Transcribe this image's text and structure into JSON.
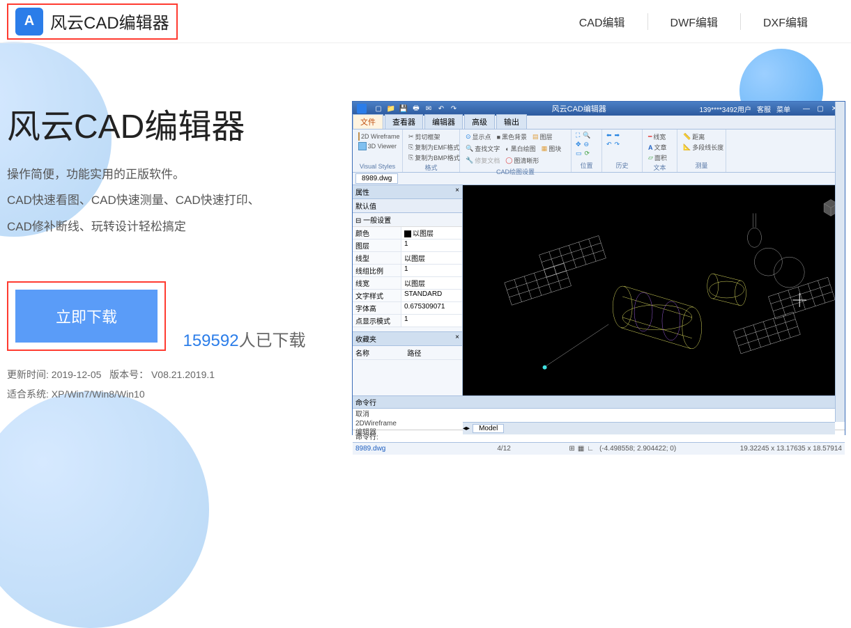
{
  "header": {
    "logo_letter": "A",
    "logo_text": "风云CAD编辑器",
    "nav": [
      "CAD编辑",
      "DWF编辑",
      "DXF编辑"
    ]
  },
  "hero": {
    "title": "风云CAD编辑器",
    "line1": "操作简便，功能实用的正版软件。",
    "line2": "CAD快速看图、CAD快速测量、CAD快速打印、",
    "line3": "CAD修补断线、玩转设计轻松搞定",
    "download_label": "立即下载",
    "download_count": "159592",
    "download_suffix": "人已下载",
    "update_label": "更新时间:",
    "update_value": "2019-12-05",
    "version_label": "版本号：",
    "version_value": "V08.21.2019.1",
    "os_label": "适合系统:",
    "os_value": "XP/Win7/Win8/Win10"
  },
  "colors": {
    "highlight_border": "#ff3b30",
    "primary_blue": "#5a9cf8",
    "link_blue": "#2b7de9",
    "app_title_grad_top": "#4a7fc5",
    "app_title_grad_bottom": "#2d5a9e"
  },
  "app": {
    "title": "风云CAD编辑器",
    "user": "139****3492用户",
    "titlebar_links": [
      "客服",
      "菜单"
    ],
    "tabs": [
      "文件",
      "查看器",
      "编辑器",
      "高级",
      "输出"
    ],
    "active_tab": 0,
    "ribbon": {
      "visual_styles": {
        "wireframe_btn": "2D Wireframe",
        "viewer_btn": "3D Viewer",
        "title": "Visual Styles"
      },
      "format": {
        "items": [
          "剪切框架",
          "复制为EMF格式",
          "复制为BMP格式"
        ],
        "title": "格式"
      },
      "cad_settings": {
        "items": [
          "显示点",
          "查找文字",
          "修复文档",
          "黑色背景",
          "黑白绘图",
          "图清晰形"
        ],
        "extra": [
          "图层",
          "图块"
        ],
        "title": "CAD绘图设置"
      },
      "position": {
        "title": "位置"
      },
      "history": {
        "title": "历史"
      },
      "text": {
        "items": [
          "线宽",
          "文章",
          "面积"
        ],
        "title": "文本"
      },
      "measure": {
        "items": [
          "距离",
          "多段线长度"
        ],
        "title": "测量"
      }
    },
    "doc_tab": "8989.dwg",
    "props": {
      "header": "属性",
      "sub": "默认值",
      "section": "一般设置",
      "rows": [
        {
          "k": "颜色",
          "v": "以图层",
          "swatch": true
        },
        {
          "k": "图层",
          "v": "1"
        },
        {
          "k": "线型",
          "v": "以图层"
        },
        {
          "k": "线组比例",
          "v": "1"
        },
        {
          "k": "线宽",
          "v": "以图层"
        },
        {
          "k": "文字样式",
          "v": "STANDARD"
        },
        {
          "k": "字体高",
          "v": "0.675309071"
        },
        {
          "k": "点显示模式",
          "v": "1"
        }
      ],
      "lower_header": "收藏夹",
      "col1": "名称",
      "col2": "路径"
    },
    "model_tab": "Model",
    "cmd": {
      "header": "命令行",
      "history": [
        "取消",
        "2DWireframe",
        "编辑器"
      ],
      "prompt": "命令行:"
    },
    "status": {
      "file": "8989.dwg",
      "page": "4/12",
      "coords": "(-4.498558; 2.904422; 0)",
      "dims": "19.32245 x 13.17635 x 18.57914"
    }
  }
}
